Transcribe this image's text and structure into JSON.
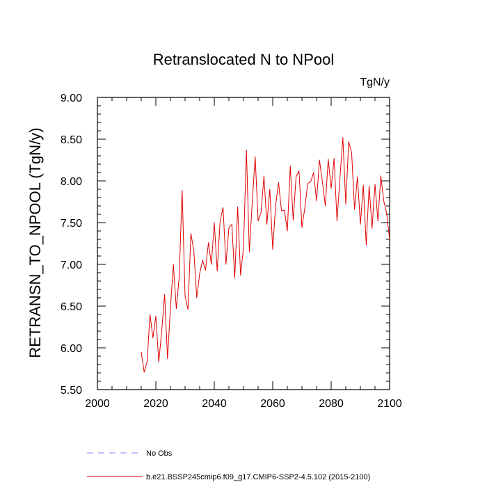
{
  "chart_data": {
    "type": "line",
    "title": "Retranslocated N to NPool",
    "units": "TgN/y",
    "xlabel": "",
    "ylabel": "RETRANSN_TO_NPOOL  (TgN/y)",
    "xlim": [
      2000,
      2100
    ],
    "ylim": [
      5.5,
      9.0
    ],
    "xticks": [
      2000,
      2020,
      2040,
      2060,
      2080,
      2100
    ],
    "xtick_labels": [
      "2000",
      "2020",
      "2040",
      "2060",
      "2080",
      "2100"
    ],
    "yticks": [
      5.5,
      6.0,
      6.5,
      7.0,
      7.5,
      8.0,
      8.5,
      9.0
    ],
    "ytick_labels": [
      "5.50",
      "6.00",
      "6.50",
      "7.00",
      "7.50",
      "8.00",
      "8.50",
      "9.00"
    ],
    "grid": false,
    "legend": [
      {
        "label": "No Obs",
        "color": "#8080ff",
        "style": "dashed"
      },
      {
        "label": "b.e21.BSSP245cmip6.f09_g17.CMIP6-SSP2-4.5.102 (2015-2100)",
        "color": "#e00000",
        "style": "solid"
      }
    ],
    "series": [
      {
        "name": "b.e21.BSSP245cmip6.f09_g17.CMIP6-SSP2-4.5.102 (2015-2100)",
        "color": "#e00000",
        "x": [
          2015,
          2016,
          2017,
          2018,
          2019,
          2020,
          2021,
          2022,
          2023,
          2024,
          2025,
          2026,
          2027,
          2028,
          2029,
          2030,
          2031,
          2032,
          2033,
          2034,
          2035,
          2036,
          2037,
          2038,
          2039,
          2040,
          2041,
          2042,
          2043,
          2044,
          2045,
          2046,
          2047,
          2048,
          2049,
          2050,
          2051,
          2052,
          2053,
          2054,
          2055,
          2056,
          2057,
          2058,
          2059,
          2060,
          2061,
          2062,
          2063,
          2064,
          2065,
          2066,
          2067,
          2068,
          2069,
          2070,
          2071,
          2072,
          2073,
          2074,
          2075,
          2076,
          2077,
          2078,
          2079,
          2080,
          2081,
          2082,
          2083,
          2084,
          2085,
          2086,
          2087,
          2088,
          2089,
          2090,
          2091,
          2092,
          2093,
          2094,
          2095,
          2096,
          2097,
          2098,
          2099,
          2100
        ],
        "y": [
          5.95,
          5.71,
          5.83,
          6.4,
          6.12,
          6.38,
          5.83,
          6.2,
          6.64,
          5.87,
          6.48,
          7.0,
          6.47,
          6.85,
          7.89,
          6.62,
          6.46,
          7.37,
          7.16,
          6.6,
          6.89,
          7.05,
          6.93,
          7.26,
          7.0,
          7.5,
          6.92,
          7.52,
          7.68,
          7.0,
          7.44,
          7.48,
          6.84,
          7.69,
          6.87,
          7.2,
          8.37,
          7.15,
          7.75,
          8.29,
          7.52,
          7.62,
          8.06,
          7.48,
          7.9,
          7.18,
          7.71,
          7.98,
          7.64,
          7.65,
          7.4,
          8.18,
          7.53,
          8.05,
          8.12,
          7.44,
          7.68,
          7.97,
          7.99,
          8.1,
          7.76,
          8.25,
          7.99,
          7.7,
          8.26,
          7.91,
          8.27,
          7.52,
          8.03,
          8.52,
          7.72,
          8.47,
          8.34,
          7.66,
          8.05,
          7.48,
          7.95,
          7.23,
          7.94,
          7.43,
          7.96,
          7.52,
          8.06,
          7.76,
          7.61,
          7.3
        ]
      }
    ]
  }
}
